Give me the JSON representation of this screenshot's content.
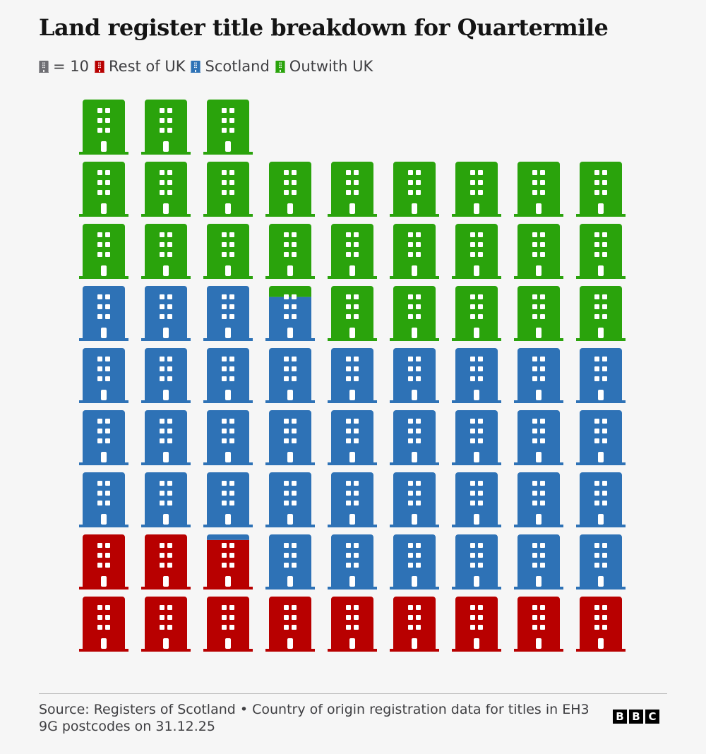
{
  "chart_data": {
    "type": "waffle",
    "title": "Land register title breakdown for Quartermile",
    "icon_value": {
      "value": 10,
      "label": "= 10"
    },
    "icon_color": "#6e6e73",
    "series": [
      {
        "name": "Rest of UK",
        "color": "#b80000",
        "value": 119
      },
      {
        "name": "Scotland",
        "color": "#2e72b6",
        "value": 369
      },
      {
        "name": "Outwith UK",
        "color": "#2aa30c",
        "value": 262
      }
    ],
    "source": "Source: Registers of Scotland • Country of origin registration data for titles in EH3 9G postcodes on 31.12.25",
    "logo": [
      "B",
      "B",
      "C"
    ]
  }
}
